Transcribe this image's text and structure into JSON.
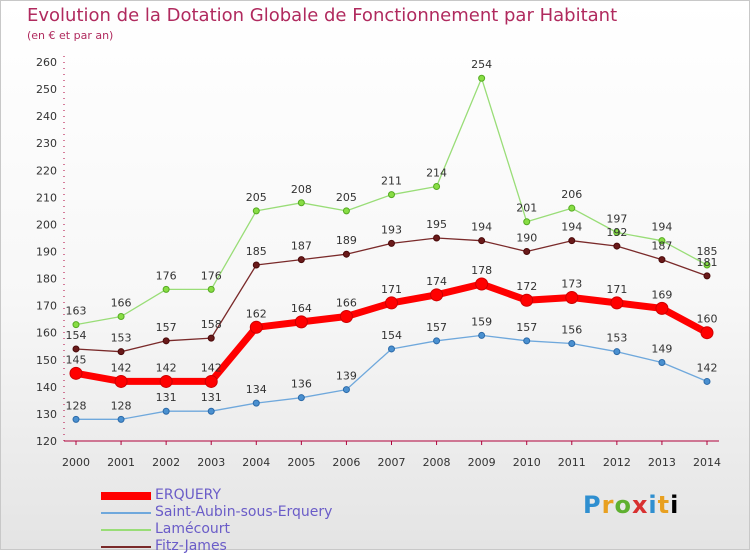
{
  "header": {
    "title": "Evolution de la Dotation Globale de Fonctionnement par Habitant",
    "subtitle": "(en € et par an)"
  },
  "brand": {
    "letters": [
      "P",
      "r",
      "o",
      "x",
      "i",
      "t",
      "i"
    ]
  },
  "chart_data": {
    "type": "line",
    "x": [
      "2000",
      "2001",
      "2002",
      "2003",
      "2004",
      "2005",
      "2006",
      "2007",
      "2008",
      "2009",
      "2010",
      "2011",
      "2012",
      "2013",
      "2014"
    ],
    "ylim": [
      120,
      260
    ],
    "yticks": [
      120,
      130,
      140,
      150,
      160,
      170,
      180,
      190,
      200,
      210,
      220,
      230,
      240,
      250,
      260
    ],
    "grid": false,
    "legend_position": "bottom-left",
    "series": [
      {
        "name": "ERQUERY",
        "color": "#ff0000",
        "values": [
          145,
          142,
          142,
          142,
          162,
          164,
          166,
          171,
          174,
          178,
          172,
          173,
          171,
          169,
          160
        ]
      },
      {
        "name": "Saint-Aubin-sous-Erquery",
        "color": "#6fa8dc",
        "values": [
          128,
          128,
          131,
          131,
          134,
          136,
          139,
          154,
          157,
          159,
          157,
          156,
          153,
          149,
          142
        ]
      },
      {
        "name": "Lamécourt",
        "color": "#99dd77",
        "values": [
          163,
          166,
          176,
          176,
          205,
          208,
          205,
          211,
          214,
          254,
          201,
          206,
          197,
          194,
          185
        ]
      },
      {
        "name": "Fitz-James",
        "color": "#7a2a2a",
        "values": [
          154,
          153,
          157,
          158,
          185,
          187,
          189,
          193,
          195,
          194,
          190,
          194,
          192,
          187,
          181
        ]
      }
    ]
  }
}
